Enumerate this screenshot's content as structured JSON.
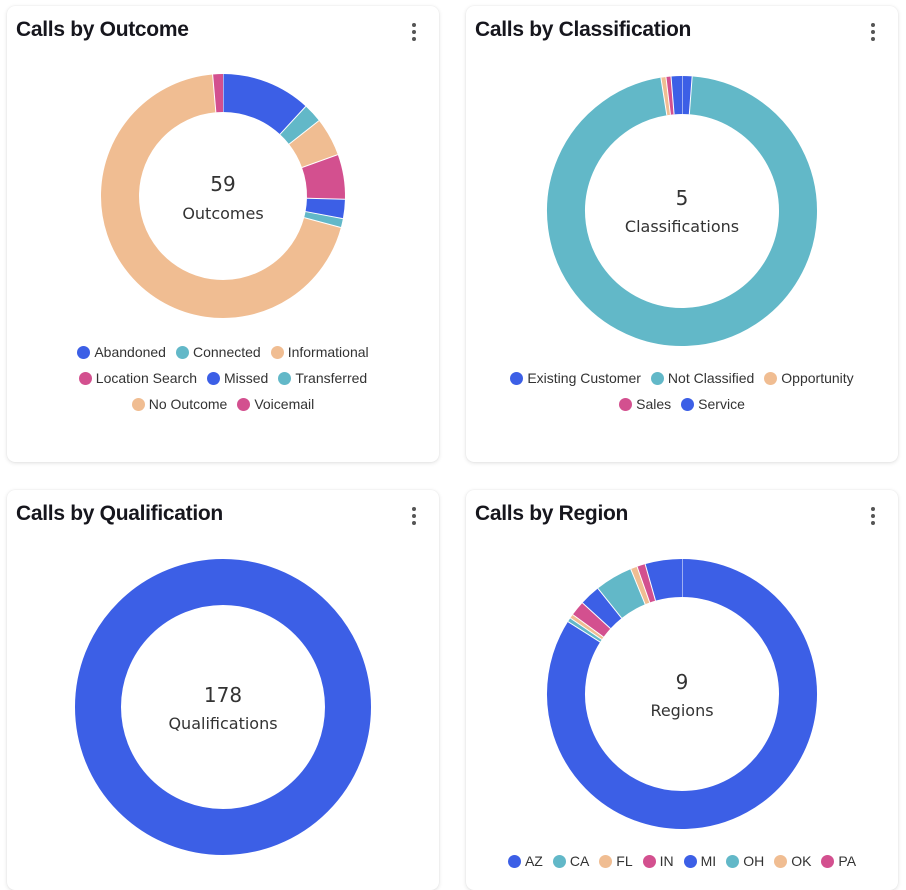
{
  "colors": {
    "blue": "#3c5fe6",
    "teal": "#62b8c8",
    "peach": "#f0bd92",
    "pink": "#d3508f"
  },
  "chart_data": [
    {
      "type": "pie",
      "title": "Calls by Outcome",
      "center_count": "59",
      "center_label": "Outcomes",
      "legend_rows": [
        [
          0,
          1,
          2
        ],
        [
          3,
          4,
          5
        ],
        [
          6,
          7
        ]
      ],
      "series": [
        {
          "name": "Abandoned",
          "value": 7,
          "color": "#3c5fe6"
        },
        {
          "name": "Connected",
          "value": 1.5,
          "color": "#62b8c8"
        },
        {
          "name": "Informational",
          "value": 3,
          "color": "#f0bd92"
        },
        {
          "name": "Location Search",
          "value": 3.5,
          "color": "#d3508f"
        },
        {
          "name": "Missed",
          "value": 1.5,
          "color": "#3c5fe6"
        },
        {
          "name": "Transferred",
          "value": 0.7,
          "color": "#62b8c8"
        },
        {
          "name": "No Outcome",
          "value": 41,
          "color": "#f0bd92"
        },
        {
          "name": "Voicemail",
          "value": 0.8,
          "color": "#d3508f"
        }
      ]
    },
    {
      "type": "pie",
      "title": "Calls by Classification",
      "center_count": "5",
      "center_label": "Classifications",
      "legend_rows": [
        [
          0,
          1,
          2
        ],
        [
          3,
          4
        ]
      ],
      "series": [
        {
          "name": "Existing Customer",
          "value": 1.2,
          "color": "#3c5fe6"
        },
        {
          "name": "Not Classified",
          "value": 96.3,
          "color": "#62b8c8"
        },
        {
          "name": "Opportunity",
          "value": 0.6,
          "color": "#f0bd92"
        },
        {
          "name": "Sales",
          "value": 0.6,
          "color": "#d3508f"
        },
        {
          "name": "Service",
          "value": 1.3,
          "color": "#3c5fe6"
        }
      ]
    },
    {
      "type": "pie",
      "title": "Calls by Qualification",
      "center_count": "178",
      "center_label": "Qualifications",
      "legend_rows": [],
      "series": [
        {
          "name": "",
          "value": 100,
          "color": "#3c5fe6"
        }
      ]
    },
    {
      "type": "pie",
      "title": "Calls by Region",
      "center_count": "9",
      "center_label": "Regions",
      "legend_rows": [
        [
          0,
          1,
          2,
          3,
          4,
          5,
          6,
          7
        ]
      ],
      "series": [
        {
          "name": "AZ",
          "value": 84,
          "color": "#3c5fe6"
        },
        {
          "name": "CA",
          "value": 0.5,
          "color": "#62b8c8"
        },
        {
          "name": "FL",
          "value": 0.5,
          "color": "#f0bd92"
        },
        {
          "name": "IN",
          "value": 1.8,
          "color": "#d3508f"
        },
        {
          "name": "MI",
          "value": 2.5,
          "color": "#3c5fe6"
        },
        {
          "name": "OH",
          "value": 4.5,
          "color": "#62b8c8"
        },
        {
          "name": "OK",
          "value": 0.8,
          "color": "#f0bd92"
        },
        {
          "name": "PA",
          "value": 1.0,
          "color": "#d3508f"
        },
        {
          "name": "",
          "value": 4.4,
          "color": "#3c5fe6"
        }
      ]
    }
  ]
}
